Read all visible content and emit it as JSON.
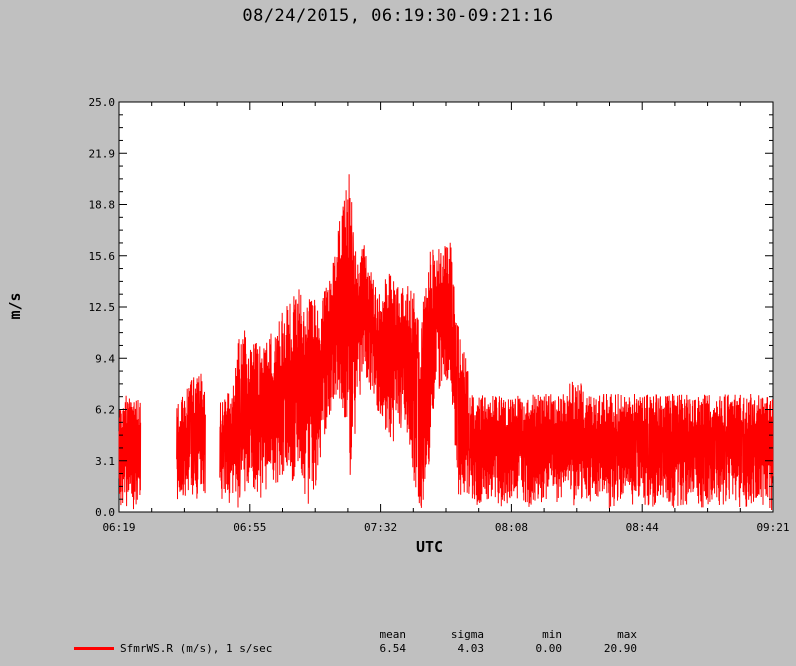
{
  "header": {
    "title": "08/24/2015, 06:19:30-09:21:16"
  },
  "chart_data": {
    "type": "line",
    "title": "08/24/2015, 06:19:30-09:21:16",
    "xlabel": "UTC",
    "ylabel": "m/s",
    "x_tick_labels": [
      "06:19",
      "06:55",
      "07:32",
      "08:08",
      "08:44",
      "09:21"
    ],
    "x_range": [
      "06:19:30",
      "09:21:16"
    ],
    "y_tick_labels": [
      "0.0",
      "3.1",
      "6.2",
      "9.4",
      "12.5",
      "15.6",
      "18.8",
      "21.9",
      "25.0"
    ],
    "ylim": [
      0,
      25
    ],
    "grid": false,
    "series": [
      {
        "name": "SfmrWS.R (m/s), 1 s/sec",
        "color": "#ff0000",
        "envelope": {
          "minutes": [
            0,
            2,
            4,
            6,
            8,
            10,
            12,
            14,
            16,
            18,
            20,
            22,
            24,
            26,
            28,
            30,
            32,
            34,
            36,
            38,
            40,
            42,
            44,
            46,
            48,
            50,
            52,
            54,
            56,
            58,
            60,
            62,
            64,
            66,
            68,
            70,
            72,
            74,
            76,
            78,
            80,
            82,
            84,
            86,
            88,
            90,
            92,
            94,
            96,
            98,
            100,
            102,
            104,
            106,
            108,
            110,
            112,
            114,
            116,
            118,
            120,
            122,
            124,
            126,
            128,
            130,
            132,
            134,
            136,
            138,
            140,
            142,
            144,
            146,
            148,
            150,
            152,
            154,
            156,
            158,
            160,
            162,
            164,
            166,
            168,
            170,
            172,
            174,
            176,
            178,
            180
          ],
          "upper": [
            7.2,
            7.2,
            7.2,
            7.2,
            null,
            null,
            null,
            null,
            7.2,
            7.2,
            8.0,
            8.6,
            8.2,
            null,
            7.2,
            7.2,
            8.4,
            12.2,
            9.8,
            10.4,
            10.0,
            11.0,
            11.4,
            12.6,
            13.0,
            13.6,
            12.8,
            13.2,
            12.4,
            14.4,
            15.6,
            19.0,
            20.9,
            15.4,
            16.6,
            14.8,
            13.2,
            14.2,
            14.8,
            13.8,
            14.6,
            13.4,
            11.6,
            15.8,
            16.2,
            16.0,
            17.2,
            11.6,
            10.2,
            7.2,
            7.2,
            7.2,
            7.2,
            7.2,
            7.2,
            7.2,
            7.2,
            7.2,
            7.2,
            7.2,
            7.2,
            7.2,
            7.2,
            8.4,
            8.0,
            7.2,
            7.2,
            7.2,
            7.2,
            7.2,
            7.2,
            7.2,
            7.2,
            7.2,
            7.2,
            7.2,
            7.2,
            7.2,
            7.2,
            7.2,
            7.2,
            7.2,
            7.2,
            7.2,
            7.2,
            7.2,
            7.2,
            7.2,
            7.2,
            7.2,
            7.2
          ],
          "lower": [
            0.3,
            0.2,
            0.1,
            0.6,
            null,
            null,
            null,
            null,
            0.8,
            0.4,
            1.2,
            0.6,
            1.0,
            null,
            0.2,
            0.0,
            0.5,
            0.0,
            1.4,
            0.8,
            0.5,
            2.0,
            1.6,
            2.4,
            1.0,
            3.0,
            0.3,
            0.8,
            3.2,
            5.2,
            7.2,
            6.4,
            1.4,
            5.6,
            8.2,
            7.4,
            6.0,
            4.2,
            3.8,
            5.2,
            4.6,
            1.8,
            0.0,
            2.4,
            7.2,
            7.6,
            8.0,
            0.8,
            0.4,
            0.8,
            0.2,
            0.6,
            1.0,
            0.2,
            0.4,
            0.6,
            0.8,
            0.2,
            0.5,
            0.3,
            1.6,
            0.4,
            0.6,
            0.2,
            0.8,
            0.3,
            1.0,
            0.6,
            0.1,
            0.4,
            0.8,
            0.2,
            0.7,
            0.3,
            0.2,
            0.6,
            0.9,
            0.1,
            0.4,
            0.3,
            0.8,
            0.2,
            0.5,
            0.6,
            0.1,
            0.7,
            0.3,
            0.2,
            0.5,
            0.4,
            0.1
          ]
        }
      }
    ],
    "stats": {
      "mean": "6.54",
      "sigma": "4.03",
      "min": "0.00",
      "max": "20.90"
    }
  },
  "legend": {
    "entry": "SfmrWS.R (m/s), 1 s/sec",
    "labels": {
      "mean": "mean",
      "sigma": "sigma",
      "min": "min",
      "max": "max"
    }
  }
}
